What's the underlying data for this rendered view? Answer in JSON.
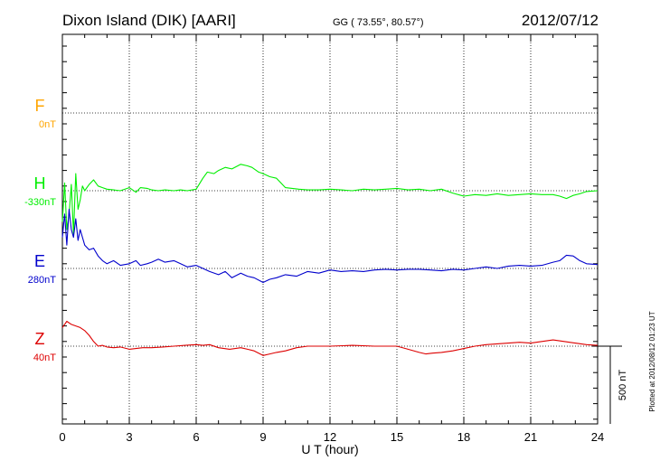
{
  "header": {
    "station": "Dixon Island (DIK)  [AARI]",
    "coords": "GG ( 73.55°,  80.57°)",
    "date": "2012/07/12"
  },
  "plotted_note": "Plotted at 2012/08/12 01:23 UT",
  "scale_bar_label": "500 nT",
  "chart_data": {
    "type": "line",
    "xlabel": "U T (hour)",
    "xlim": [
      0,
      24
    ],
    "x_ticks": [
      "0",
      "3",
      "6",
      "9",
      "12",
      "15",
      "18",
      "21",
      "24"
    ],
    "components": [
      {
        "name": "F",
        "offset_label": "0nT",
        "color": "#ffa500"
      },
      {
        "name": "H",
        "offset_label": "-330nT",
        "color": "#00ee00"
      },
      {
        "name": "E",
        "offset_label": "280nT",
        "color": "#0000cc"
      },
      {
        "name": "Z",
        "offset_label": "40nT",
        "color": "#dd0000"
      }
    ],
    "series": [
      {
        "name": "H",
        "color": "#00ee00",
        "baseline_nT": 0,
        "x": [
          0,
          0.1,
          0.2,
          0.3,
          0.4,
          0.5,
          0.6,
          0.7,
          0.8,
          0.9,
          1.0,
          1.2,
          1.4,
          1.6,
          1.8,
          2.0,
          2.3,
          2.6,
          3.0,
          3.3,
          3.5,
          3.8,
          4.0,
          4.3,
          4.6,
          5.0,
          5.3,
          5.6,
          6.0,
          6.3,
          6.5,
          6.8,
          7.0,
          7.3,
          7.6,
          8.0,
          8.3,
          8.5,
          8.8,
          9.0,
          9.3,
          9.6,
          10.0,
          10.3,
          10.6,
          11.0,
          11.5,
          12.0,
          12.5,
          13.0,
          13.5,
          14.0,
          14.5,
          15.0,
          15.5,
          16.0,
          16.5,
          17.0,
          17.5,
          18.0,
          18.5,
          19.0,
          19.5,
          20.0,
          20.5,
          21.0,
          21.5,
          22.0,
          22.3,
          22.6,
          22.9,
          23.2,
          23.5,
          24.0
        ],
        "y_nT": [
          -200,
          50,
          -250,
          -150,
          40,
          -280,
          110,
          -120,
          -60,
          30,
          0,
          40,
          70,
          30,
          20,
          10,
          5,
          0,
          20,
          -10,
          20,
          15,
          5,
          0,
          5,
          0,
          5,
          0,
          10,
          80,
          120,
          110,
          130,
          150,
          140,
          170,
          160,
          150,
          120,
          110,
          90,
          80,
          20,
          15,
          10,
          5,
          5,
          10,
          5,
          0,
          10,
          5,
          10,
          15,
          5,
          10,
          0,
          10,
          -15,
          -35,
          -25,
          -30,
          -20,
          -30,
          -25,
          -20,
          -25,
          -25,
          -35,
          -50,
          -30,
          -20,
          -5,
          0
        ]
      },
      {
        "name": "E",
        "color": "#0000cc",
        "baseline_nT": 0,
        "x": [
          0,
          0.1,
          0.2,
          0.3,
          0.4,
          0.5,
          0.6,
          0.7,
          0.8,
          0.9,
          1.0,
          1.2,
          1.4,
          1.6,
          1.8,
          2.0,
          2.3,
          2.6,
          3.0,
          3.3,
          3.5,
          3.8,
          4.0,
          4.3,
          4.6,
          5.0,
          5.3,
          5.6,
          6.0,
          6.3,
          6.6,
          7.0,
          7.3,
          7.6,
          8.0,
          8.3,
          8.6,
          9.0,
          9.3,
          9.6,
          10.0,
          10.5,
          11.0,
          11.5,
          12.0,
          12.5,
          13.0,
          13.5,
          14.0,
          14.5,
          15.0,
          15.5,
          16.0,
          16.5,
          17.0,
          17.5,
          18.0,
          18.5,
          19.0,
          19.5,
          20.0,
          20.5,
          21.0,
          21.5,
          22.0,
          22.3,
          22.6,
          22.9,
          23.2,
          23.5,
          24.0
        ],
        "y_nT": [
          200,
          350,
          150,
          380,
          250,
          200,
          320,
          180,
          250,
          200,
          150,
          120,
          130,
          80,
          50,
          30,
          50,
          20,
          30,
          50,
          20,
          30,
          40,
          60,
          40,
          50,
          30,
          10,
          20,
          0,
          -20,
          -40,
          -20,
          -60,
          -30,
          -50,
          -60,
          -90,
          -70,
          -60,
          -40,
          -50,
          -20,
          -30,
          -10,
          -20,
          -15,
          -20,
          -10,
          -5,
          -10,
          -5,
          -5,
          -10,
          -15,
          -5,
          -10,
          0,
          10,
          0,
          15,
          20,
          15,
          20,
          40,
          50,
          85,
          80,
          50,
          30,
          25
        ]
      },
      {
        "name": "Z",
        "color": "#dd0000",
        "baseline_nT": 0,
        "x": [
          0,
          0.2,
          0.4,
          0.6,
          0.8,
          1.0,
          1.2,
          1.4,
          1.6,
          1.8,
          2.0,
          2.3,
          2.6,
          3.0,
          3.3,
          3.6,
          4.0,
          4.5,
          5.0,
          5.5,
          6.0,
          6.3,
          6.6,
          7.0,
          7.5,
          8.0,
          8.3,
          8.6,
          9.0,
          9.3,
          9.6,
          10.0,
          10.5,
          11.0,
          12.0,
          13.0,
          14.0,
          15.0,
          15.5,
          16.0,
          16.3,
          16.6,
          17.0,
          17.5,
          18.0,
          18.5,
          19.0,
          19.5,
          20.0,
          20.5,
          21.0,
          21.5,
          22.0,
          22.5,
          23.0,
          23.5,
          24.0
        ],
        "y_nT": [
          120,
          160,
          140,
          130,
          120,
          100,
          70,
          30,
          0,
          5,
          -5,
          -10,
          -5,
          -20,
          -15,
          -10,
          -10,
          -5,
          0,
          5,
          10,
          5,
          10,
          -10,
          -20,
          -10,
          -20,
          -30,
          -60,
          -50,
          -40,
          -30,
          -10,
          0,
          0,
          5,
          0,
          0,
          -20,
          -40,
          -50,
          -45,
          -40,
          -30,
          -15,
          0,
          10,
          15,
          20,
          25,
          20,
          30,
          40,
          30,
          20,
          10,
          5
        ]
      }
    ],
    "scale_bar_nT": 500
  }
}
